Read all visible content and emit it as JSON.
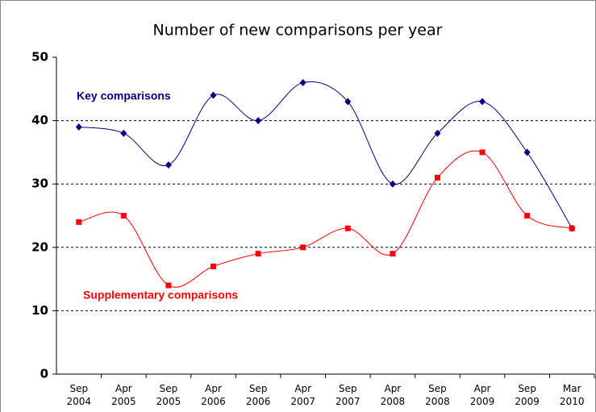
{
  "chart_data": {
    "type": "line",
    "title": "Number of new comparisons per year",
    "categories": [
      [
        "Sep",
        "2004"
      ],
      [
        "Apr",
        "2005"
      ],
      [
        "Sep",
        "2005"
      ],
      [
        "Apr",
        "2006"
      ],
      [
        "Sep",
        "2006"
      ],
      [
        "Apr",
        "2007"
      ],
      [
        "Sep",
        "2007"
      ],
      [
        "Apr",
        "2008"
      ],
      [
        "Sep",
        "2008"
      ],
      [
        "Apr",
        "2009"
      ],
      [
        "Sep",
        "2009"
      ],
      [
        "Mar",
        "2010"
      ]
    ],
    "series": [
      {
        "name": "Key comparisons",
        "color": "#000080",
        "marker": "diamond",
        "values": [
          39,
          38,
          33,
          44,
          40,
          46,
          43,
          30,
          38,
          43,
          35,
          23
        ]
      },
      {
        "name": "Supplementary comparisons",
        "color": "#ff0000",
        "marker": "square",
        "values": [
          24,
          25,
          14,
          17,
          19,
          20,
          23,
          19,
          31,
          35,
          25,
          23
        ]
      }
    ],
    "ylim": [
      0,
      50
    ],
    "yticks": [
      0,
      10,
      20,
      30,
      40,
      50
    ],
    "grid": true,
    "smooth": true
  }
}
